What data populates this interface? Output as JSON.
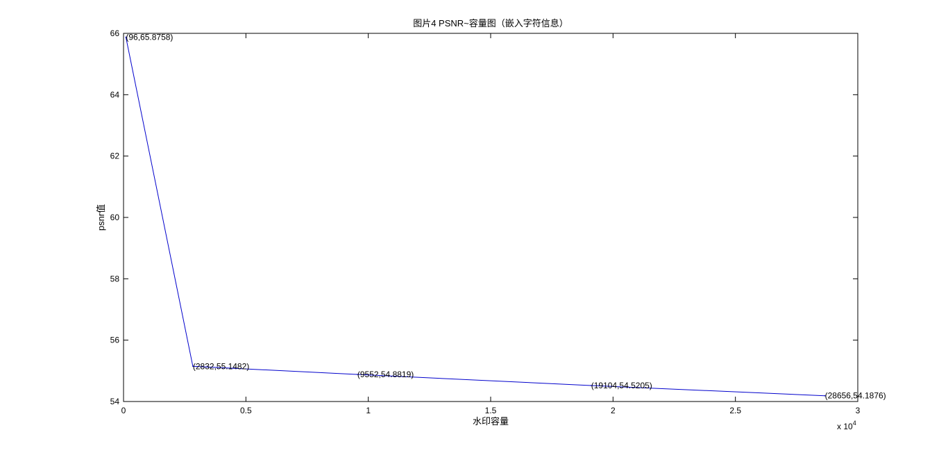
{
  "colors": {
    "line": "#0000cc",
    "axes": "#000000",
    "background": "#ffffff"
  },
  "chart_data": {
    "type": "line",
    "title": "图片4 PSNR~容量图（嵌入字符信息）",
    "xlabel": "水印容量",
    "ylabel": "psnr值",
    "x_exponent_label": "x 10",
    "x_exponent_power": "4",
    "xlim": [
      0,
      30000
    ],
    "ylim": [
      54,
      66
    ],
    "x_ticks": [
      0,
      5000,
      10000,
      15000,
      20000,
      25000,
      30000
    ],
    "x_tick_labels": [
      "0",
      "0.5",
      "1",
      "1.5",
      "2",
      "2.5",
      "3"
    ],
    "y_ticks": [
      54,
      56,
      58,
      60,
      62,
      64,
      66
    ],
    "y_tick_labels": [
      "54",
      "56",
      "58",
      "60",
      "62",
      "64",
      "66"
    ],
    "grid": false,
    "series": [
      {
        "x": [
          96,
          2832,
          9552,
          19104,
          28656
        ],
        "y": [
          65.8758,
          55.1482,
          54.8819,
          54.5205,
          54.1876
        ]
      }
    ],
    "annotations": [
      "(96,65.8758)",
      "(2832,55.1482)",
      "(9552,54.8819)",
      "(19104,54.5205)",
      "(28656,54.1876)"
    ]
  }
}
